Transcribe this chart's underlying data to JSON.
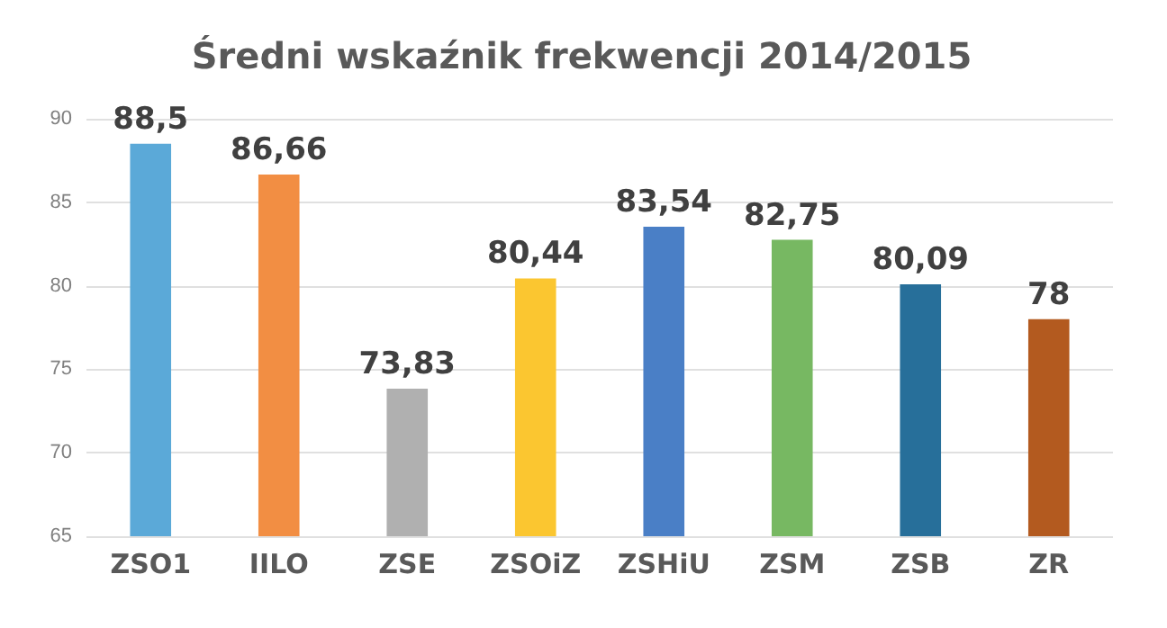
{
  "chart_data": {
    "type": "bar",
    "title": "Średni wskaźnik frekwencji 2014/2015",
    "categories": [
      "ZSO1",
      "IILO",
      "ZSE",
      "ZSOiZ",
      "ZSHiU",
      "ZSM",
      "ZSB",
      "ZR"
    ],
    "values": [
      88.5,
      86.66,
      73.83,
      80.44,
      83.54,
      82.75,
      80.09,
      78
    ],
    "value_labels": [
      "88,5",
      "86,66",
      "73,83",
      "80,44",
      "83,54",
      "82,75",
      "80,09",
      "78"
    ],
    "colors": [
      "#5ba9d8",
      "#f28e43",
      "#b0b0b0",
      "#fbc630",
      "#4a7fc6",
      "#77b862",
      "#276f9a",
      "#b35a1f"
    ],
    "ylim": [
      65,
      90
    ],
    "yticks": [
      65,
      70,
      75,
      80,
      85,
      90
    ],
    "grid": "y"
  }
}
